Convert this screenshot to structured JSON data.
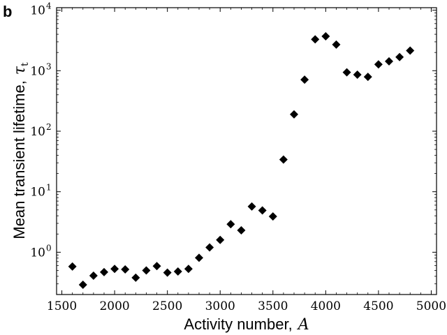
{
  "chart_data": {
    "type": "scatter",
    "panel_label": "b",
    "xlabel": "Activity number,",
    "xlabel_symbol": "A",
    "ylabel": "Mean transient lifetime,",
    "ylabel_symbol": "τ",
    "ylabel_subscript": "t",
    "x_ticks": [
      "1500",
      "2000",
      "2500",
      "3000",
      "3500",
      "4000",
      "4500",
      "5000"
    ],
    "x_tick_values": [
      1500,
      2000,
      2500,
      3000,
      3500,
      4000,
      4500,
      5000
    ],
    "y_ticks": [
      {
        "base": "10",
        "exp": "0"
      },
      {
        "base": "10",
        "exp": "1"
      },
      {
        "base": "10",
        "exp": "2"
      },
      {
        "base": "10",
        "exp": "3"
      },
      {
        "base": "10",
        "exp": "4"
      }
    ],
    "y_tick_values": [
      1,
      10,
      100,
      1000,
      10000
    ],
    "xlim": [
      1450,
      5050
    ],
    "ylim": [
      0.2,
      11000
    ],
    "y_scale": "log",
    "grid": false,
    "marker": "diamond",
    "marker_color": "#000000",
    "x": [
      1600,
      1700,
      1800,
      1900,
      2000,
      2100,
      2200,
      2300,
      2400,
      2500,
      2600,
      2700,
      2800,
      2900,
      3000,
      3100,
      3200,
      3300,
      3400,
      3500,
      3600,
      3700,
      3800,
      3900,
      4000,
      4100,
      4200,
      4300,
      4400,
      4500,
      4600,
      4700,
      4800
    ],
    "y": [
      0.58,
      0.29,
      0.41,
      0.47,
      0.53,
      0.52,
      0.38,
      0.5,
      0.59,
      0.46,
      0.48,
      0.53,
      0.81,
      1.2,
      1.6,
      2.9,
      2.3,
      5.7,
      4.9,
      3.9,
      34,
      190,
      710,
      3300,
      3700,
      2700,
      940,
      860,
      790,
      1270,
      1430,
      1680,
      2150
    ]
  }
}
